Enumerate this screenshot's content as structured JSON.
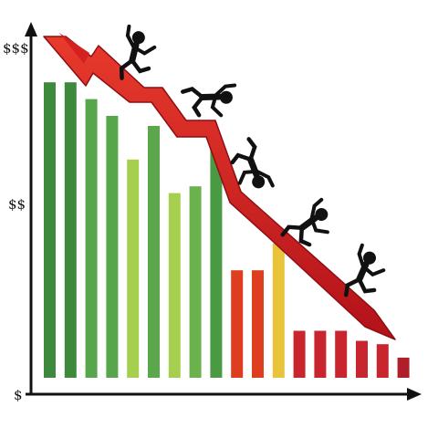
{
  "chart_data": {
    "type": "bar",
    "title": "",
    "xlabel": "",
    "ylabel": "",
    "y_tick_labels": [
      "$$$",
      "$$",
      "$"
    ],
    "ylim": [
      0,
      100
    ],
    "values": [
      88,
      88,
      83,
      78,
      65,
      75,
      55,
      57,
      70,
      32,
      32,
      40,
      14,
      14,
      14,
      11,
      10,
      6
    ],
    "bar_colors": [
      "#3d8a3d",
      "#3d8a3d",
      "#57a64c",
      "#57a64c",
      "#a6cf4f",
      "#5aa84b",
      "#a6cf4f",
      "#6cb24c",
      "#4a9a44",
      "#df3d1f",
      "#df3d1f",
      "#e9c43a",
      "#c9252e",
      "#c9252e",
      "#c9252e",
      "#c9252e",
      "#c9252e",
      "#b01e2a"
    ],
    "trend_arrow": {
      "direction": "down",
      "color": "#d4201f",
      "path_values": [
        100,
        82,
        80,
        84,
        67,
        50,
        36,
        25,
        2
      ]
    },
    "falling_figures": 5,
    "grid": false,
    "legend": "none"
  },
  "icons": {
    "figure": "falling-person-icon",
    "arrow": "downtrend-arrow-icon"
  }
}
